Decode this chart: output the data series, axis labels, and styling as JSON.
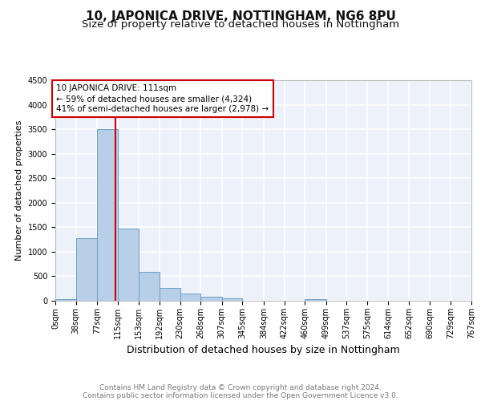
{
  "title": "10, JAPONICA DRIVE, NOTTINGHAM, NG6 8PU",
  "subtitle": "Size of property relative to detached houses in Nottingham",
  "xlabel": "Distribution of detached houses by size in Nottingham",
  "ylabel": "Number of detached properties",
  "bin_edges": [
    0,
    38,
    77,
    115,
    153,
    192,
    230,
    268,
    307,
    345,
    384,
    422,
    460,
    499,
    537,
    575,
    614,
    652,
    690,
    729,
    767
  ],
  "bin_labels": [
    "0sqm",
    "38sqm",
    "77sqm",
    "115sqm",
    "153sqm",
    "192sqm",
    "230sqm",
    "268sqm",
    "307sqm",
    "345sqm",
    "384sqm",
    "422sqm",
    "460sqm",
    "499sqm",
    "537sqm",
    "575sqm",
    "614sqm",
    "652sqm",
    "690sqm",
    "729sqm",
    "767sqm"
  ],
  "bar_values": [
    30,
    1280,
    3500,
    1480,
    590,
    255,
    140,
    80,
    50,
    0,
    0,
    0,
    35,
    0,
    0,
    0,
    0,
    0,
    0,
    0
  ],
  "bar_color": "#b8cfe8",
  "bar_edgecolor": "#6a9ec5",
  "property_size": 111,
  "vline_color": "#cc0000",
  "annotation_line1": "10 JAPONICA DRIVE: 111sqm",
  "annotation_line2": "← 59% of detached houses are smaller (4,324)",
  "annotation_line3": "41% of semi-detached houses are larger (2,978) →",
  "annotation_box_color": "#cc0000",
  "ylim": [
    0,
    4500
  ],
  "yticks": [
    0,
    500,
    1000,
    1500,
    2000,
    2500,
    3000,
    3500,
    4000,
    4500
  ],
  "footer_line1": "Contains HM Land Registry data © Crown copyright and database right 2024.",
  "footer_line2": "Contains public sector information licensed under the Open Government Licence v3.0.",
  "background_color": "#edf1f9",
  "grid_color": "#ffffff",
  "title_fontsize": 11,
  "subtitle_fontsize": 9.5,
  "ylabel_fontsize": 8,
  "xlabel_fontsize": 9,
  "tick_fontsize": 7,
  "footer_fontsize": 6.5,
  "annotation_fontsize": 7.5
}
